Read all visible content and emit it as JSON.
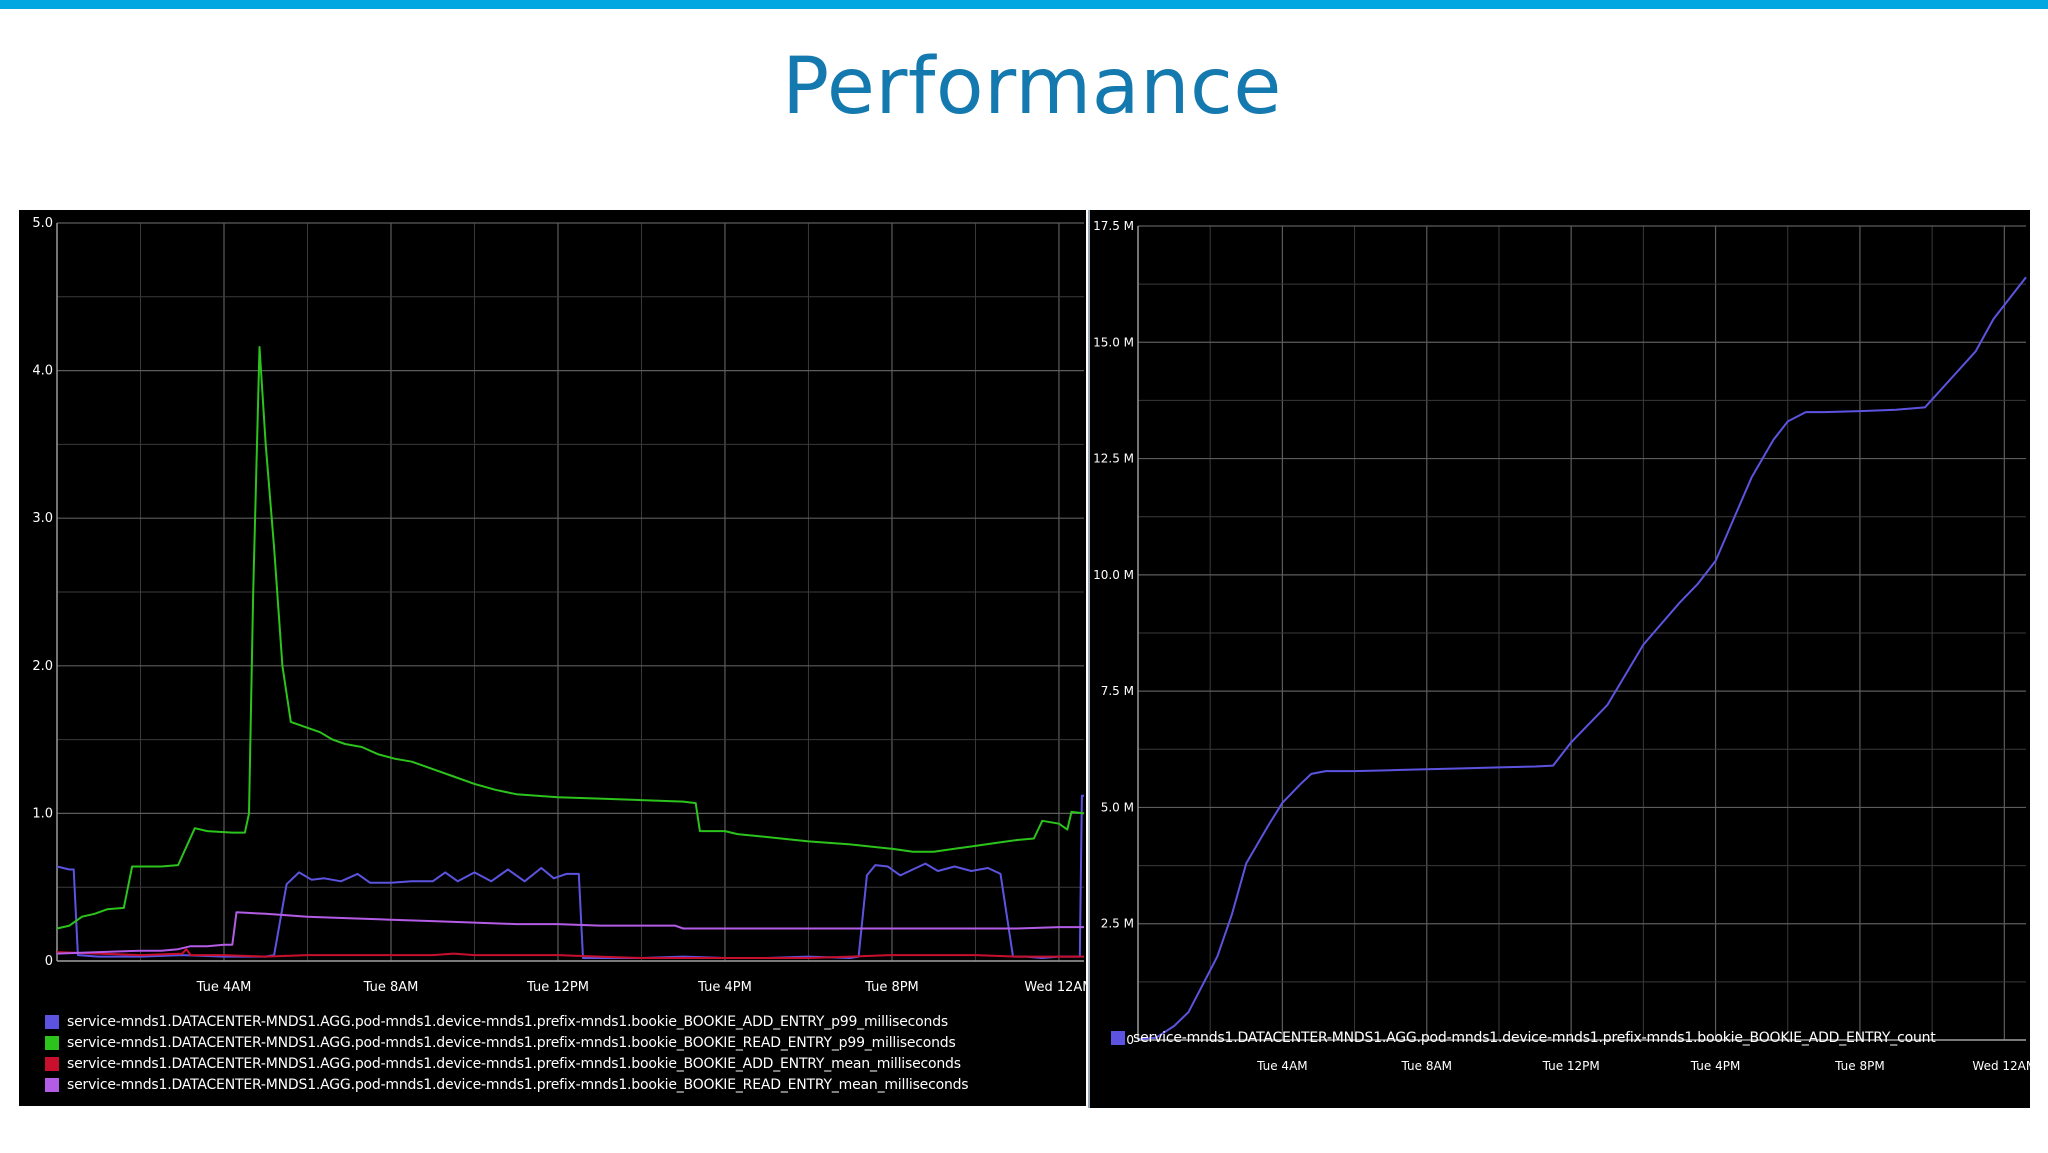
{
  "slide": {
    "title": "Performance"
  },
  "colors": {
    "accent_bar": "#00a7e1",
    "title": "#1479ae",
    "chart_bg": "#000000",
    "grid": "#5c5c5c"
  },
  "chart_data": [
    {
      "type": "line",
      "title": "",
      "xlabel": "",
      "ylabel": "",
      "x_domain": [
        0,
        24.6
      ],
      "ylim": [
        0,
        5
      ],
      "y_ticks": [
        0,
        1,
        2,
        3,
        4,
        5
      ],
      "y_tick_labels": [
        "0",
        "1.0",
        "2.0",
        "3.0",
        "4.0",
        "5.0"
      ],
      "x_ticks": [
        4,
        8,
        12,
        16,
        20,
        24
      ],
      "x_tick_labels": [
        "Tue 4AM",
        "Tue 8AM",
        "Tue 12PM",
        "Tue 4PM",
        "Tue 8PM",
        "Wed 12AM"
      ],
      "grid": true,
      "legend_position": "bottom",
      "series": [
        {
          "name": "service-mnds1.DATACENTER-MNDS1.AGG.pod-mnds1.device-mnds1.prefix-mnds1.bookie_BOOKIE_ADD_ENTRY_p99_milliseconds",
          "color": "#5c54e0",
          "points": [
            [
              0,
              0.64
            ],
            [
              0.3,
              0.62
            ],
            [
              0.4,
              0.62
            ],
            [
              0.5,
              0.04
            ],
            [
              1.0,
              0.03
            ],
            [
              2,
              0.03
            ],
            [
              3,
              0.04
            ],
            [
              4,
              0.03
            ],
            [
              5,
              0.03
            ],
            [
              5.2,
              0.04
            ],
            [
              5.5,
              0.52
            ],
            [
              5.8,
              0.6
            ],
            [
              6.1,
              0.55
            ],
            [
              6.4,
              0.56
            ],
            [
              6.8,
              0.54
            ],
            [
              7.2,
              0.59
            ],
            [
              7.5,
              0.53
            ],
            [
              8,
              0.53
            ],
            [
              8.5,
              0.54
            ],
            [
              9,
              0.54
            ],
            [
              9.3,
              0.6
            ],
            [
              9.6,
              0.54
            ],
            [
              10,
              0.6
            ],
            [
              10.4,
              0.54
            ],
            [
              10.8,
              0.62
            ],
            [
              11.2,
              0.54
            ],
            [
              11.6,
              0.63
            ],
            [
              11.9,
              0.56
            ],
            [
              12.2,
              0.59
            ],
            [
              12.5,
              0.59
            ],
            [
              12.6,
              0.02
            ],
            [
              13,
              0.02
            ],
            [
              14,
              0.02
            ],
            [
              15,
              0.03
            ],
            [
              16,
              0.02
            ],
            [
              17,
              0.02
            ],
            [
              18,
              0.03
            ],
            [
              19,
              0.02
            ],
            [
              19.2,
              0.03
            ],
            [
              19.4,
              0.58
            ],
            [
              19.6,
              0.65
            ],
            [
              19.9,
              0.64
            ],
            [
              20.2,
              0.58
            ],
            [
              20.5,
              0.62
            ],
            [
              20.8,
              0.66
            ],
            [
              21.1,
              0.61
            ],
            [
              21.5,
              0.64
            ],
            [
              21.9,
              0.61
            ],
            [
              22.3,
              0.63
            ],
            [
              22.6,
              0.59
            ],
            [
              22.9,
              0.03
            ],
            [
              23.2,
              0.03
            ],
            [
              23.6,
              0.02
            ],
            [
              24,
              0.03
            ],
            [
              24.5,
              0.03
            ],
            [
              24.55,
              1.12
            ],
            [
              24.6,
              1.12
            ]
          ]
        },
        {
          "name": "service-mnds1.DATACENTER-MNDS1.AGG.pod-mnds1.device-mnds1.prefix-mnds1.bookie_BOOKIE_READ_ENTRY_p99_milliseconds",
          "color": "#2cc31c",
          "points": [
            [
              0,
              0.22
            ],
            [
              0.3,
              0.24
            ],
            [
              0.6,
              0.3
            ],
            [
              0.9,
              0.32
            ],
            [
              1.2,
              0.35
            ],
            [
              1.6,
              0.36
            ],
            [
              1.8,
              0.64
            ],
            [
              2.1,
              0.64
            ],
            [
              2.5,
              0.64
            ],
            [
              2.9,
              0.65
            ],
            [
              3.3,
              0.9
            ],
            [
              3.6,
              0.88
            ],
            [
              4.2,
              0.87
            ],
            [
              4.5,
              0.87
            ],
            [
              4.6,
              1.0
            ],
            [
              4.7,
              2.5
            ],
            [
              4.85,
              4.16
            ],
            [
              5.0,
              3.5
            ],
            [
              5.2,
              2.8
            ],
            [
              5.4,
              2.0
            ],
            [
              5.6,
              1.62
            ],
            [
              6,
              1.58
            ],
            [
              6.3,
              1.55
            ],
            [
              6.6,
              1.5
            ],
            [
              6.9,
              1.47
            ],
            [
              7.3,
              1.45
            ],
            [
              7.7,
              1.4
            ],
            [
              8.1,
              1.37
            ],
            [
              8.5,
              1.35
            ],
            [
              9,
              1.3
            ],
            [
              9.5,
              1.25
            ],
            [
              10,
              1.2
            ],
            [
              10.5,
              1.16
            ],
            [
              11,
              1.13
            ],
            [
              12,
              1.11
            ],
            [
              13,
              1.1
            ],
            [
              14,
              1.09
            ],
            [
              15,
              1.08
            ],
            [
              15.3,
              1.07
            ],
            [
              15.4,
              0.88
            ],
            [
              16,
              0.88
            ],
            [
              16.3,
              0.86
            ],
            [
              17,
              0.84
            ],
            [
              18,
              0.81
            ],
            [
              19,
              0.79
            ],
            [
              20,
              0.76
            ],
            [
              20.5,
              0.74
            ],
            [
              21,
              0.74
            ],
            [
              21.5,
              0.76
            ],
            [
              22,
              0.78
            ],
            [
              22.5,
              0.8
            ],
            [
              23,
              0.82
            ],
            [
              23.4,
              0.83
            ],
            [
              23.6,
              0.95
            ],
            [
              24.0,
              0.93
            ],
            [
              24.2,
              0.89
            ],
            [
              24.3,
              1.01
            ],
            [
              24.6,
              1.0
            ]
          ]
        },
        {
          "name": "service-mnds1.DATACENTER-MNDS1.AGG.pod-mnds1.device-mnds1.prefix-mnds1.bookie_BOOKIE_ADD_ENTRY_mean_milliseconds",
          "color": "#c8102e",
          "points": [
            [
              0,
              0.06
            ],
            [
              1,
              0.05
            ],
            [
              2,
              0.04
            ],
            [
              3,
              0.05
            ],
            [
              3.1,
              0.08
            ],
            [
              3.2,
              0.04
            ],
            [
              4,
              0.04
            ],
            [
              5,
              0.03
            ],
            [
              6,
              0.04
            ],
            [
              7,
              0.04
            ],
            [
              8,
              0.04
            ],
            [
              9,
              0.04
            ],
            [
              9.5,
              0.05
            ],
            [
              10,
              0.04
            ],
            [
              11,
              0.04
            ],
            [
              11.5,
              0.04
            ],
            [
              12,
              0.04
            ],
            [
              13,
              0.03
            ],
            [
              14,
              0.02
            ],
            [
              15,
              0.02
            ],
            [
              16,
              0.02
            ],
            [
              17,
              0.02
            ],
            [
              18,
              0.02
            ],
            [
              19,
              0.03
            ],
            [
              20,
              0.04
            ],
            [
              21,
              0.04
            ],
            [
              22,
              0.04
            ],
            [
              23,
              0.03
            ],
            [
              24,
              0.03
            ],
            [
              24.6,
              0.03
            ]
          ]
        },
        {
          "name": "service-mnds1.DATACENTER-MNDS1.AGG.pod-mnds1.device-mnds1.prefix-mnds1.bookie_BOOKIE_READ_ENTRY_mean_milliseconds",
          "color": "#b35ce6",
          "points": [
            [
              0,
              0.05
            ],
            [
              1,
              0.06
            ],
            [
              2,
              0.07
            ],
            [
              2.5,
              0.07
            ],
            [
              2.9,
              0.08
            ],
            [
              3.2,
              0.1
            ],
            [
              3.6,
              0.1
            ],
            [
              4.0,
              0.11
            ],
            [
              4.2,
              0.11
            ],
            [
              4.3,
              0.33
            ],
            [
              5,
              0.32
            ],
            [
              6,
              0.3
            ],
            [
              7,
              0.29
            ],
            [
              8,
              0.28
            ],
            [
              9,
              0.27
            ],
            [
              10,
              0.26
            ],
            [
              11,
              0.25
            ],
            [
              12,
              0.25
            ],
            [
              13,
              0.24
            ],
            [
              14,
              0.24
            ],
            [
              14.8,
              0.24
            ],
            [
              15,
              0.22
            ],
            [
              16,
              0.22
            ],
            [
              17,
              0.22
            ],
            [
              18,
              0.22
            ],
            [
              19,
              0.22
            ],
            [
              20,
              0.22
            ],
            [
              21,
              0.22
            ],
            [
              22,
              0.22
            ],
            [
              23,
              0.22
            ],
            [
              24,
              0.23
            ],
            [
              24.6,
              0.23
            ]
          ]
        }
      ]
    },
    {
      "type": "line",
      "title": "",
      "xlabel": "",
      "ylabel": "",
      "x_domain": [
        0,
        24.6
      ],
      "ylim": [
        0,
        17.5
      ],
      "y_ticks": [
        0,
        2.5,
        5,
        7.5,
        10,
        12.5,
        15,
        17.5
      ],
      "y_tick_labels": [
        "0",
        "2.5 M",
        "5.0 M",
        "7.5 M",
        "10.0 M",
        "12.5 M",
        "15.0 M",
        "17.5 M"
      ],
      "x_ticks": [
        4,
        8,
        12,
        16,
        20,
        24
      ],
      "x_tick_labels": [
        "Tue 4AM",
        "Tue 8AM",
        "Tue 12PM",
        "Tue 4PM",
        "Tue 8PM",
        "Wed 12AM"
      ],
      "grid": true,
      "legend_position": "bottom",
      "series": [
        {
          "name": "service-mnds1.DATACENTER-MNDS1.AGG.pod-mnds1.device-mnds1.prefix-mnds1.bookie_BOOKIE_ADD_ENTRY_count",
          "color": "#5c54e0",
          "points": [
            [
              0,
              0.02
            ],
            [
              0.5,
              0.05
            ],
            [
              1,
              0.3
            ],
            [
              1.4,
              0.6
            ],
            [
              1.8,
              1.2
            ],
            [
              2.2,
              1.8
            ],
            [
              2.6,
              2.7
            ],
            [
              3.0,
              3.8
            ],
            [
              3.6,
              4.6
            ],
            [
              4.0,
              5.1
            ],
            [
              4.5,
              5.5
            ],
            [
              4.8,
              5.72
            ],
            [
              5.2,
              5.78
            ],
            [
              6,
              5.78
            ],
            [
              7,
              5.8
            ],
            [
              8,
              5.82
            ],
            [
              9,
              5.84
            ],
            [
              10,
              5.86
            ],
            [
              11,
              5.88
            ],
            [
              11.5,
              5.9
            ],
            [
              12,
              6.4
            ],
            [
              13,
              7.2
            ],
            [
              14,
              8.5
            ],
            [
              15,
              9.4
            ],
            [
              15.5,
              9.8
            ],
            [
              16,
              10.3
            ],
            [
              16.5,
              11.2
            ],
            [
              17,
              12.1
            ],
            [
              17.6,
              12.9
            ],
            [
              18,
              13.3
            ],
            [
              18.5,
              13.5
            ],
            [
              19,
              13.5
            ],
            [
              20,
              13.52
            ],
            [
              21,
              13.55
            ],
            [
              21.8,
              13.6
            ],
            [
              22.5,
              14.2
            ],
            [
              23.2,
              14.8
            ],
            [
              23.7,
              15.5
            ],
            [
              24.0,
              15.8
            ],
            [
              24.6,
              16.4
            ]
          ]
        }
      ]
    }
  ]
}
